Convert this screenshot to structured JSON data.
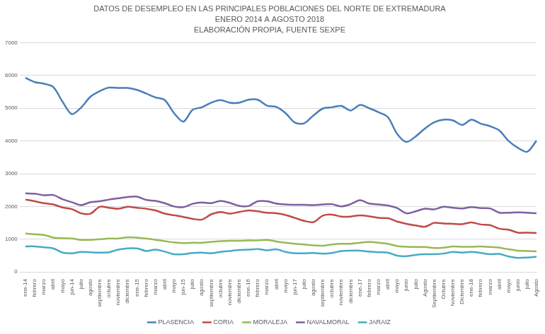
{
  "chart_data": {
    "type": "line",
    "title": [
      "DATOS DE DESEMPLEO EN LAS PRINCIPALES POBLACIONES DEL NORTE DE EXTREMADURA",
      "ENERO 2014 A AGOSTO 2018",
      "ELABORACIÓN PROPIA, FUENTE SEXPE"
    ],
    "categories": [
      "ene-14",
      "febrero",
      "marzo",
      "abril",
      "mayo",
      "jun-14",
      "julio",
      "agosto",
      "septiembre",
      "octubre",
      "noviembre",
      "diciembre",
      "ene-15",
      "febrero",
      "marzo",
      "abril",
      "mayo",
      "jun-15",
      "julio",
      "agosto",
      "septiembre",
      "octubre",
      "noviembre",
      "diciembre",
      "ene-16",
      "febrero",
      "marzo",
      "abril",
      "mayo",
      "jun-17",
      "julio",
      "agosto",
      "septiembre",
      "octubre",
      "noviembre",
      "diciembre",
      "ene-17",
      "febrero",
      "marzo",
      "abril",
      "mayo",
      "junio",
      "julio",
      "Agosto",
      "Septiembre",
      "Octubre",
      "Noviembre",
      "Diciembre",
      "ene-18",
      "febrero",
      "marzo",
      "abril",
      "mayo",
      "junio",
      "julio",
      "Agosto"
    ],
    "series": [
      {
        "name": "PLASENCIA",
        "color": "#4a7ebb",
        "values": [
          5930,
          5800,
          5750,
          5650,
          5200,
          4820,
          5020,
          5350,
          5520,
          5630,
          5620,
          5620,
          5560,
          5450,
          5330,
          5250,
          4850,
          4590,
          4950,
          5030,
          5170,
          5250,
          5170,
          5170,
          5260,
          5260,
          5080,
          5040,
          4850,
          4560,
          4540,
          4780,
          4990,
          5030,
          5070,
          4930,
          5100,
          5000,
          4880,
          4730,
          4220,
          3970,
          4140,
          4380,
          4570,
          4650,
          4630,
          4490,
          4650,
          4530,
          4450,
          4320,
          4000,
          3790,
          3670,
          4010
        ]
      },
      {
        "name": "CORIA",
        "color": "#be4b48",
        "values": [
          2210,
          2160,
          2100,
          2060,
          1970,
          1920,
          1790,
          1780,
          1990,
          1960,
          1930,
          1990,
          1960,
          1930,
          1880,
          1780,
          1730,
          1680,
          1620,
          1600,
          1760,
          1830,
          1780,
          1830,
          1880,
          1850,
          1810,
          1790,
          1740,
          1650,
          1560,
          1520,
          1720,
          1750,
          1690,
          1690,
          1730,
          1700,
          1650,
          1640,
          1540,
          1470,
          1420,
          1380,
          1500,
          1480,
          1470,
          1460,
          1510,
          1450,
          1430,
          1320,
          1290,
          1200,
          1200,
          1190
        ]
      },
      {
        "name": "MORALEJA",
        "color": "#98b954",
        "values": [
          1170,
          1150,
          1130,
          1050,
          1030,
          1020,
          980,
          980,
          1000,
          1020,
          1020,
          1060,
          1050,
          1020,
          980,
          940,
          900,
          880,
          890,
          890,
          920,
          940,
          950,
          950,
          960,
          960,
          980,
          930,
          890,
          860,
          840,
          810,
          800,
          840,
          860,
          860,
          890,
          920,
          890,
          860,
          790,
          770,
          760,
          760,
          730,
          740,
          780,
          770,
          770,
          780,
          760,
          740,
          690,
          650,
          640,
          630
        ]
      },
      {
        "name": "NAVALMORAL",
        "color": "#7d60a0",
        "values": [
          2400,
          2390,
          2340,
          2350,
          2220,
          2130,
          2040,
          2130,
          2160,
          2210,
          2250,
          2290,
          2300,
          2200,
          2170,
          2100,
          2000,
          1980,
          2080,
          2120,
          2100,
          2170,
          2110,
          2020,
          2010,
          2160,
          2160,
          2090,
          2060,
          2050,
          2050,
          2040,
          2060,
          2070,
          2000,
          2070,
          2190,
          2090,
          2060,
          2030,
          1950,
          1790,
          1850,
          1930,
          1910,
          1990,
          1960,
          1940,
          1980,
          1950,
          1940,
          1810,
          1810,
          1820,
          1810,
          1790
        ]
      },
      {
        "name": "JARAIZ",
        "color": "#46aac5",
        "values": [
          780,
          780,
          750,
          720,
          590,
          570,
          610,
          600,
          590,
          600,
          680,
          720,
          720,
          640,
          680,
          620,
          540,
          540,
          580,
          590,
          570,
          610,
          640,
          670,
          680,
          700,
          660,
          690,
          610,
          570,
          570,
          580,
          560,
          580,
          640,
          650,
          650,
          620,
          600,
          590,
          500,
          480,
          520,
          540,
          540,
          560,
          610,
          590,
          610,
          580,
          540,
          550,
          470,
          430,
          440,
          460
        ]
      }
    ],
    "ylim": [
      0,
      7000
    ],
    "yticks": [
      0,
      1000,
      2000,
      3000,
      4000,
      5000,
      6000,
      7000
    ],
    "grid": true,
    "legend": "bottom"
  }
}
